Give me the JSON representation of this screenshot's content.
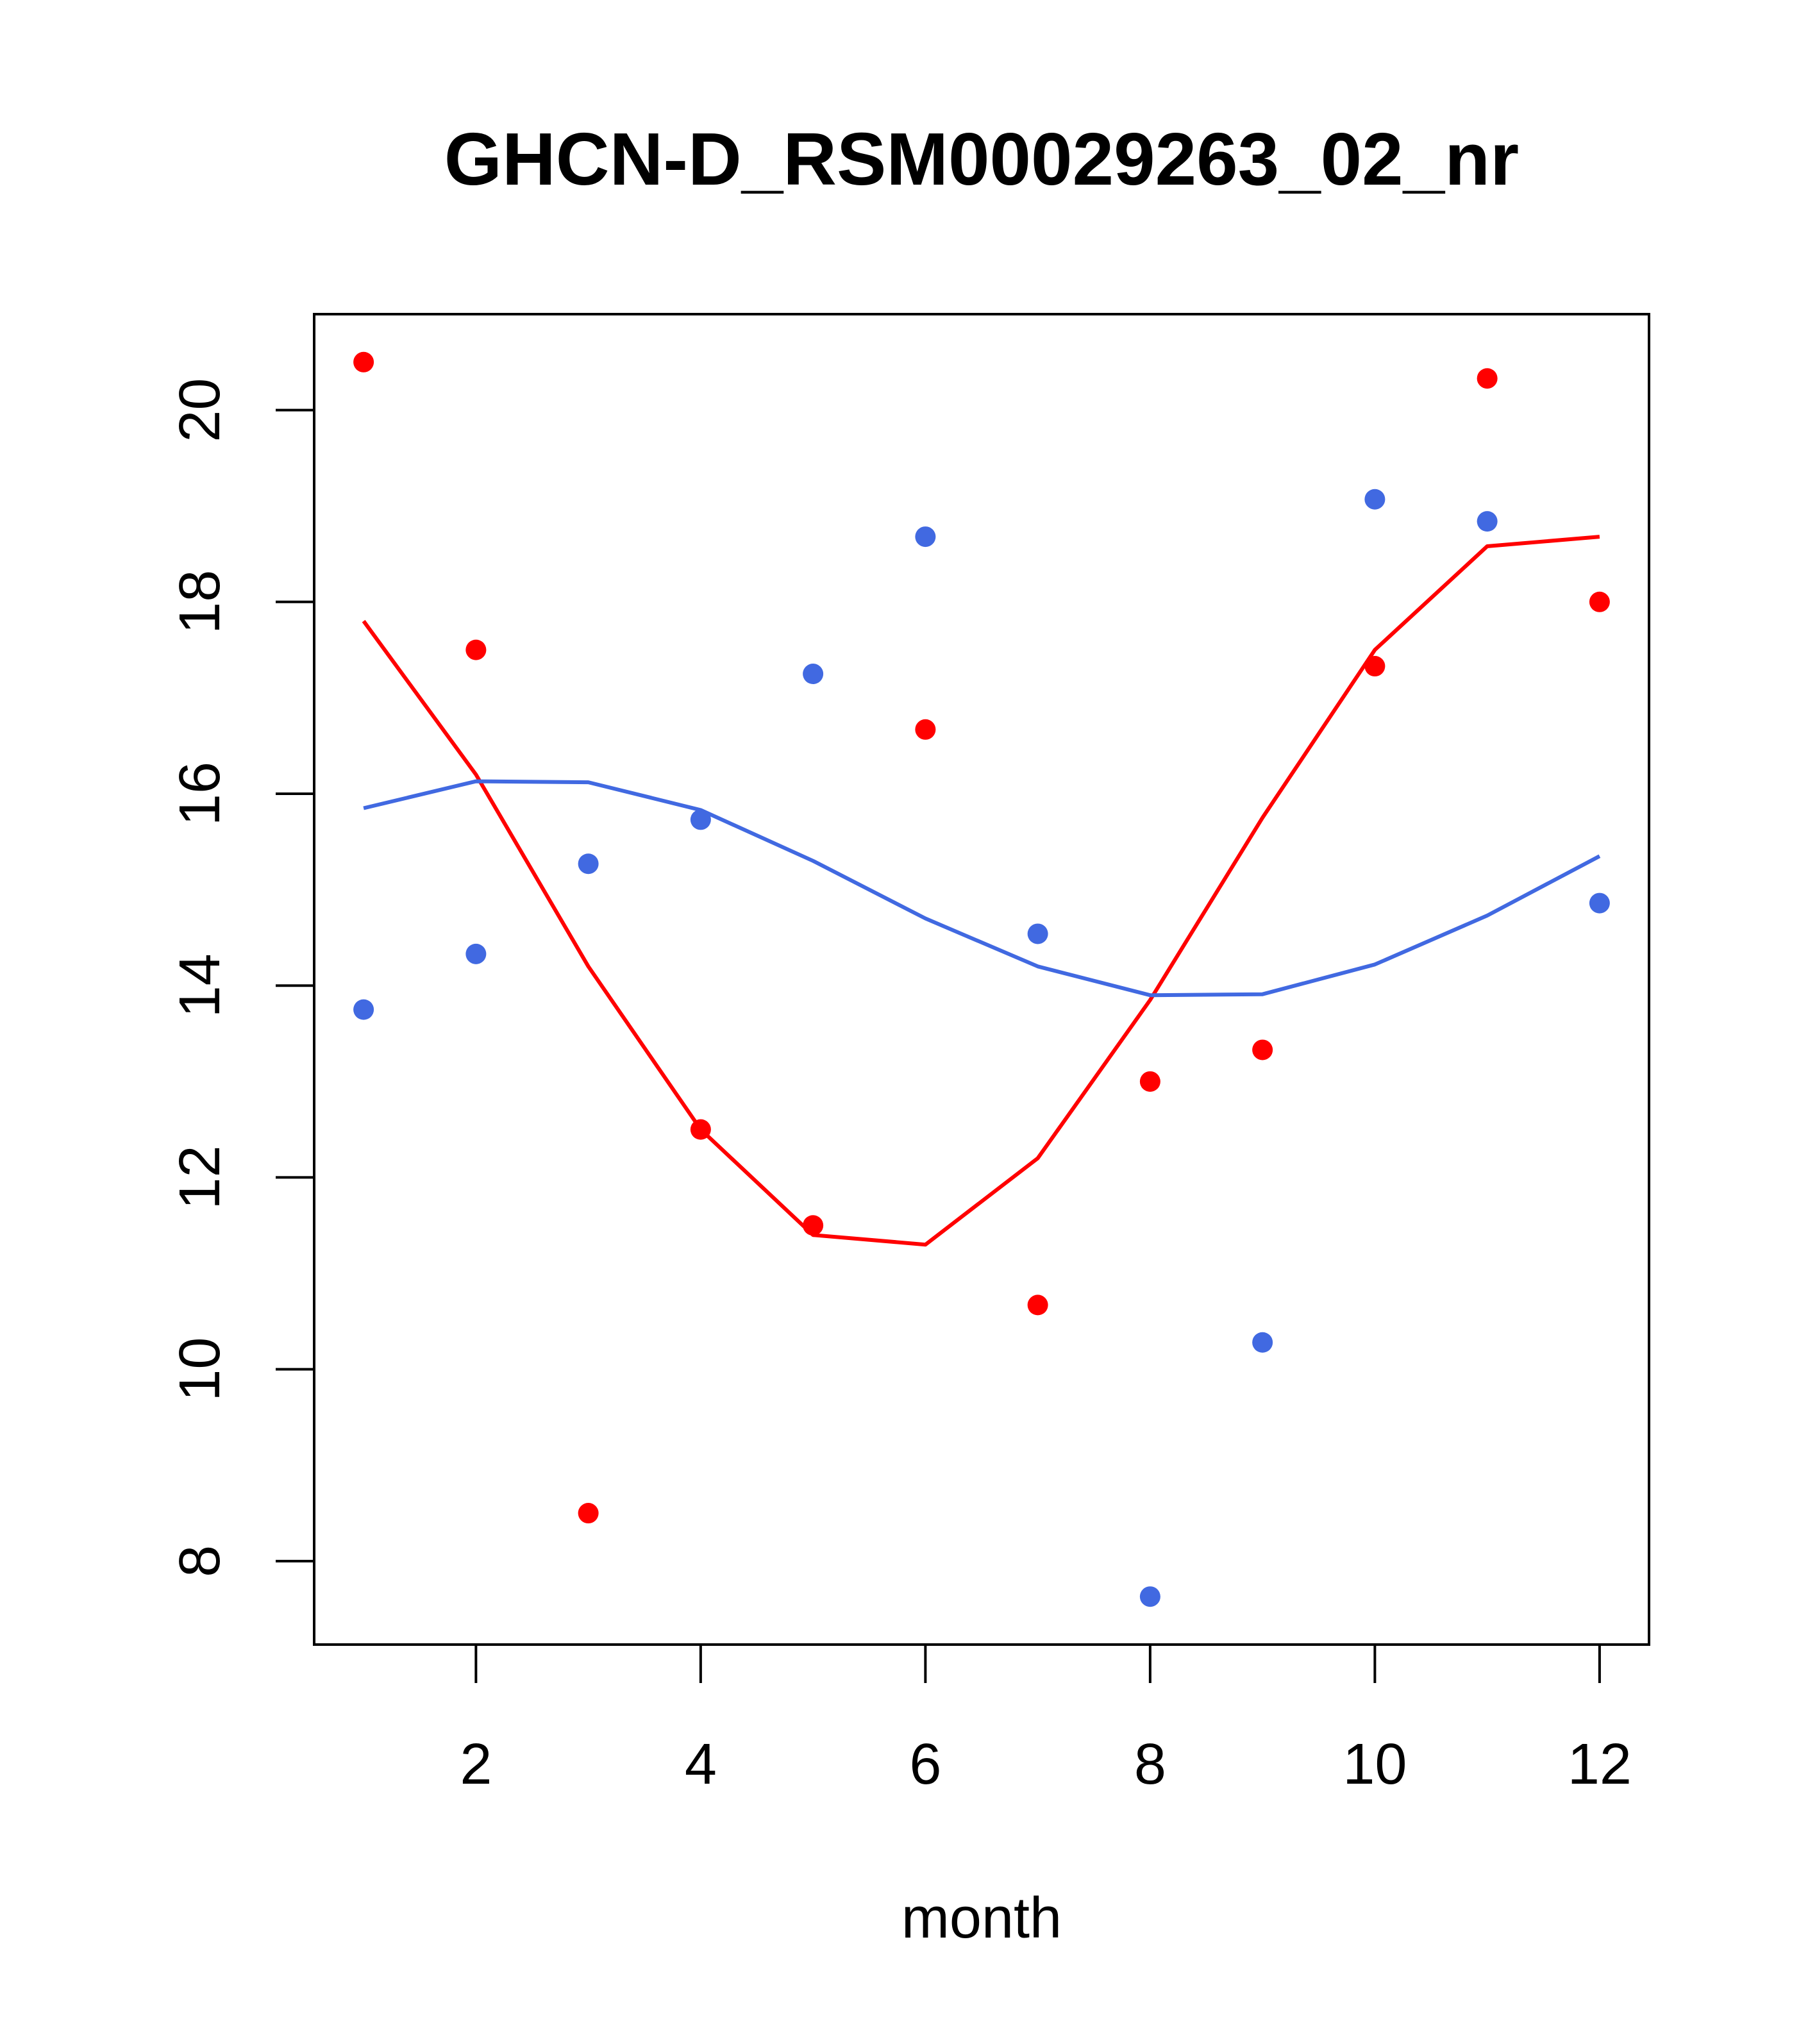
{
  "chart_data": {
    "type": "scatter",
    "title": "GHCN-D_RSM00029263_02_nr",
    "xlabel": "month",
    "ylabel": "",
    "xlim": [
      0.56,
      12.44
    ],
    "ylim": [
      7.13,
      21.0
    ],
    "x_ticks": [
      2,
      4,
      6,
      8,
      10,
      12
    ],
    "x_tick_labels": [
      "2",
      "4",
      "6",
      "8",
      "10",
      "12"
    ],
    "y_ticks": [
      8,
      10,
      12,
      14,
      16,
      18,
      20
    ],
    "y_tick_labels": [
      "8",
      "10",
      "12",
      "14",
      "16",
      "18",
      "20"
    ],
    "grid": false,
    "legend": "none",
    "series": [
      {
        "color": "#ff0000",
        "x": [
          1,
          2,
          3,
          4,
          5,
          6,
          7,
          8,
          9,
          10,
          11,
          12
        ],
        "points": [
          20.5,
          17.5,
          8.5,
          12.5,
          11.5,
          16.67,
          10.67,
          13.0,
          13.33,
          17.33,
          20.33,
          18.0
        ],
        "line": [
          17.8,
          16.2,
          14.2,
          12.5,
          11.4,
          11.3,
          12.2,
          13.85,
          15.75,
          17.5,
          18.58,
          18.68
        ]
      },
      {
        "color": "#4169e1",
        "x": [
          1,
          2,
          3,
          4,
          5,
          6,
          7,
          8,
          9,
          10,
          11,
          12
        ],
        "points": [
          13.75,
          14.33,
          15.27,
          15.73,
          17.25,
          18.68,
          14.54,
          7.63,
          10.28,
          19.07,
          18.84,
          14.86
        ],
        "line": [
          15.85,
          16.13,
          16.12,
          15.83,
          15.3,
          14.7,
          14.2,
          13.9,
          13.91,
          14.22,
          14.73,
          15.35
        ]
      }
    ]
  }
}
